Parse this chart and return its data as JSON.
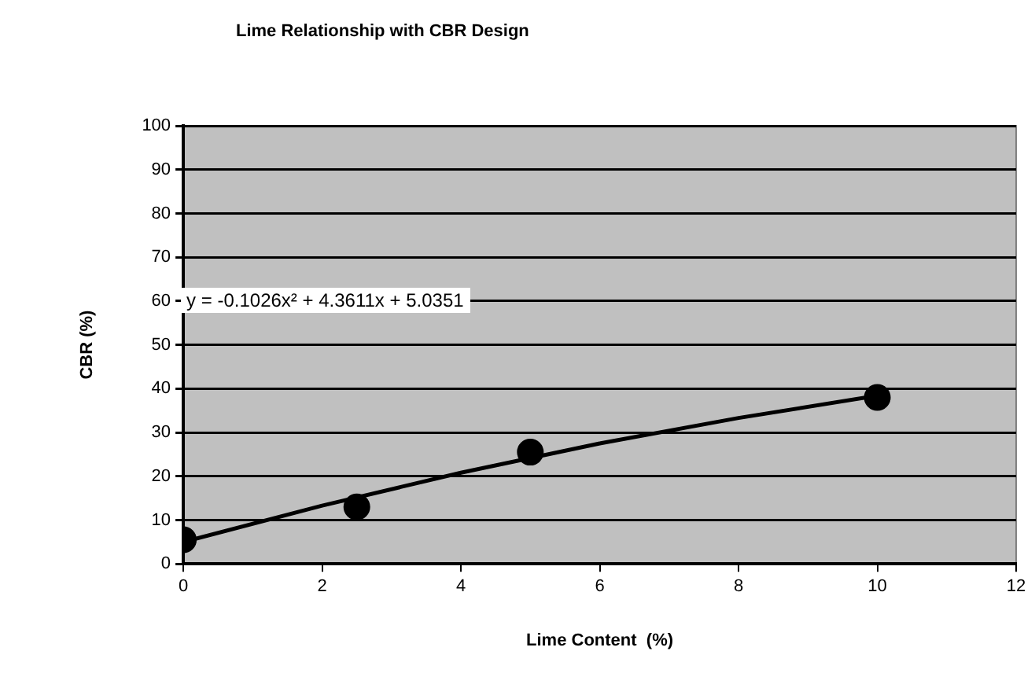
{
  "chart_data": {
    "type": "scatter",
    "title": "Lime Relationship with CBR Design",
    "xlabel": "Lime Content  (%)",
    "ylabel": "CBR (%)",
    "xlim": [
      0,
      12
    ],
    "xticks": [
      0,
      2,
      4,
      6,
      8,
      10,
      12
    ],
    "ylim": [
      0,
      100
    ],
    "yticks": [
      0,
      10,
      20,
      30,
      40,
      50,
      60,
      70,
      80,
      90,
      100
    ],
    "grid": "y",
    "legend": false,
    "annotations": [
      "y = -0.1026x² + 4.3611x + 5.0351"
    ],
    "series": [
      {
        "marker": "circle",
        "color": "#000000",
        "x": [
          0,
          2.5,
          5,
          10
        ],
        "values": [
          5.5,
          13,
          25.5,
          38
        ]
      },
      {
        "type": "line",
        "color": "#000000",
        "line_style": "solid",
        "x": [
          0,
          2,
          4,
          6,
          8,
          10
        ],
        "values": [
          5,
          13.3,
          20.8,
          27.5,
          33.3,
          38.4
        ]
      }
    ]
  }
}
